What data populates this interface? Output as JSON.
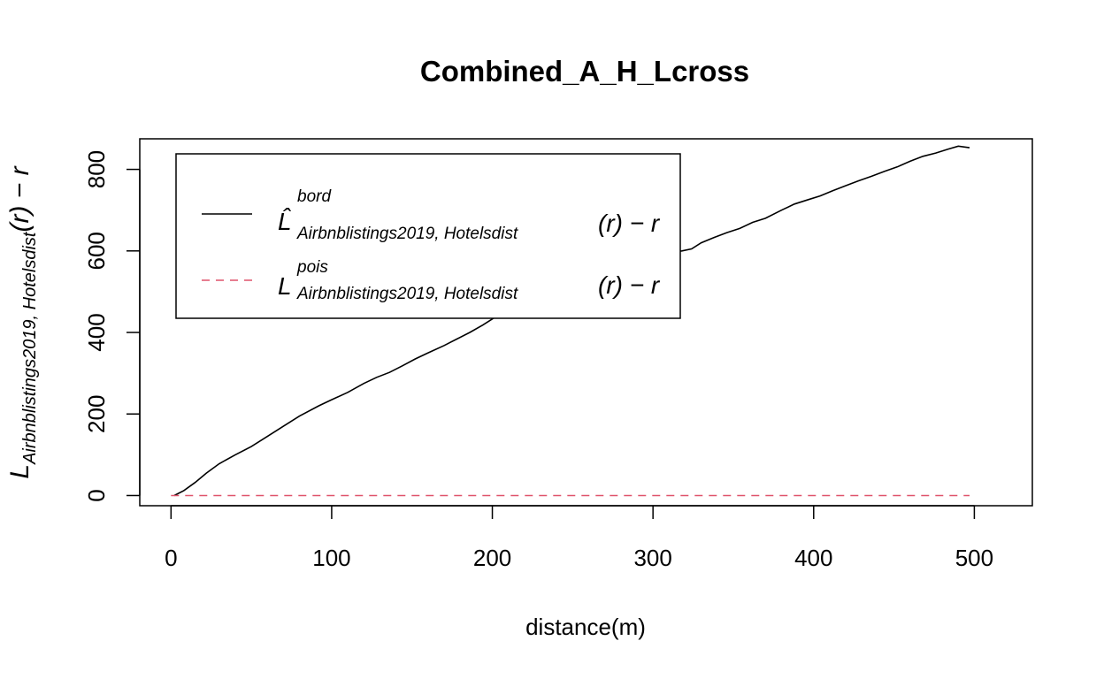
{
  "chart_data": {
    "type": "line",
    "title": "Combined_A_H_Lcross",
    "xlabel": "distance(m)",
    "ylabel": {
      "main": "L",
      "sub": "Airbnblistings2019, Hotelsdist",
      "tail": "(r) − r"
    },
    "xlim": [
      0,
      500
    ],
    "ylim": [
      -25,
      875
    ],
    "x_ticks": [
      0,
      100,
      200,
      300,
      400,
      500
    ],
    "y_ticks": [
      0,
      200,
      400,
      600,
      800
    ],
    "legend_position": "top-left",
    "series": [
      {
        "name": "bord",
        "legend": {
          "main": "L̂",
          "sup": "bord",
          "sub": "Airbnblistings2019, Hotelsdist",
          "tail": "(r) − r"
        },
        "color": "#000000",
        "style": "solid",
        "x": [
          2,
          8,
          15,
          22,
          30,
          40,
          50,
          60,
          70,
          80,
          92,
          100,
          110,
          120,
          128,
          136,
          144,
          152,
          160,
          170,
          178,
          186,
          194,
          202,
          210,
          218,
          226,
          235,
          244,
          252,
          260,
          270,
          280,
          290,
          300,
          308,
          312,
          318,
          324,
          330,
          338,
          346,
          354,
          362,
          370,
          380,
          388,
          396,
          404,
          412,
          420,
          428,
          436,
          444,
          452,
          460,
          468,
          476,
          484,
          490,
          497
        ],
        "y": [
          0,
          12,
          32,
          55,
          78,
          100,
          120,
          145,
          170,
          195,
          220,
          235,
          253,
          275,
          290,
          302,
          318,
          335,
          350,
          368,
          384,
          400,
          418,
          438,
          455,
          467,
          480,
          496,
          510,
          520,
          532,
          548,
          565,
          578,
          590,
          598,
          597,
          600,
          605,
          620,
          633,
          645,
          655,
          670,
          680,
          700,
          715,
          725,
          735,
          748,
          760,
          772,
          783,
          795,
          806,
          820,
          832,
          840,
          850,
          857,
          853
        ]
      },
      {
        "name": "pois",
        "legend": {
          "main": "L",
          "sup": "pois",
          "sub": "Airbnblistings2019, Hotelsdist",
          "tail": "(r) − r"
        },
        "color": "#DF536B",
        "style": "dashed",
        "x": [
          0,
          497
        ],
        "y": [
          0,
          0
        ]
      }
    ]
  }
}
